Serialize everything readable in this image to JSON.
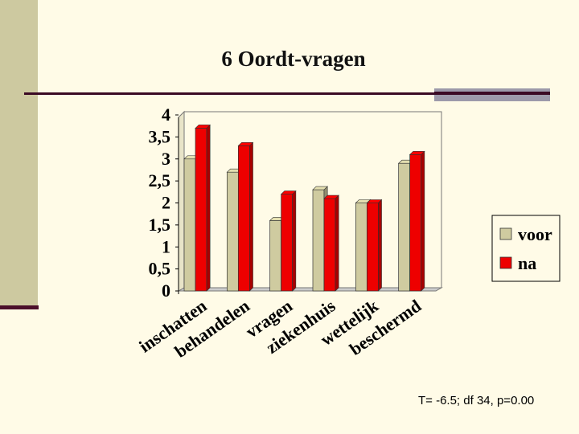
{
  "slide": {
    "title": "6 Oordt-vragen",
    "footnote": "T= -6.5; df 34, p=0.00"
  },
  "colors": {
    "voor": "#cfcba0",
    "na": "#ee0000",
    "background": "#fffbe7"
  },
  "chart_data": {
    "type": "bar",
    "title": "6 Oordt-vragen",
    "categories": [
      "inschatten",
      "behandelen",
      "vragen",
      "ziekenhuis",
      "wettelijk",
      "beschermd"
    ],
    "series": [
      {
        "name": "voor",
        "values": [
          3.0,
          2.7,
          1.6,
          2.3,
          2.0,
          2.9
        ]
      },
      {
        "name": "na",
        "values": [
          3.7,
          3.3,
          2.2,
          2.1,
          2.0,
          3.1
        ]
      }
    ],
    "y_ticks": [
      "0",
      "0,5",
      "1",
      "1,5",
      "2",
      "2,5",
      "3",
      "3,5",
      "4"
    ],
    "ylim": [
      0,
      4
    ],
    "legend_position": "right",
    "xlabel": "",
    "ylabel": ""
  }
}
